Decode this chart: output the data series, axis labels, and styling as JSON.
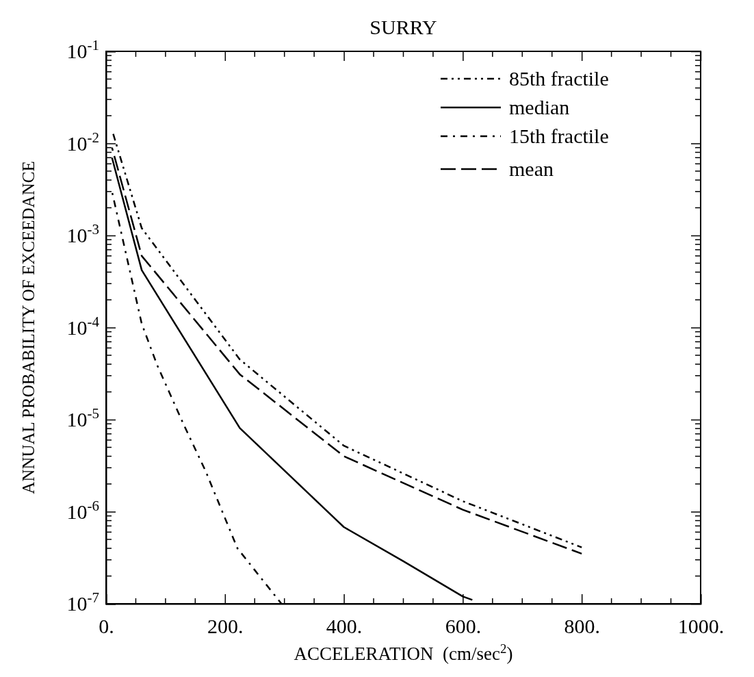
{
  "chart_data": {
    "type": "line",
    "title": "SURRY",
    "xlabel": "ACCELERATION  (cm/sec$^{2}$)",
    "ylabel": "ANNUAL PROBABILITY OF EXCEEDANCE",
    "log": "y",
    "legend": "top right",
    "grid": false,
    "xlim": [
      0,
      1000
    ],
    "xticks": [
      {
        "value": 0,
        "label": "0."
      },
      {
        "value": 200,
        "label": "200."
      },
      {
        "value": 400,
        "label": "400."
      },
      {
        "value": 600,
        "label": "600."
      },
      {
        "value": 800,
        "label": "800."
      },
      {
        "value": 1000,
        "label": "1000."
      }
    ],
    "ylim": [
      1e-07,
      0.1
    ],
    "yticks": [
      {
        "value": 1e-07,
        "label": "10$^{-7}$"
      },
      {
        "value": 1e-06,
        "label": "10$^{-6}$"
      },
      {
        "value": 1e-05,
        "label": "10$^{-5}$"
      },
      {
        "value": 0.0001,
        "label": "10$^{-4}$"
      },
      {
        "value": 0.001,
        "label": "10$^{-3}$"
      },
      {
        "value": 0.01,
        "label": "10$^{-2}$"
      },
      {
        "value": 0.1,
        "label": "10$^{-1}$"
      }
    ],
    "series": [
      {
        "name": "85th fractile",
        "color": "#000000",
        "line_style": "dashdotdot",
        "x": [
          10,
          60,
          225,
          400,
          600,
          800
        ],
        "values": [
          0.014,
          0.0012,
          4.5e-05,
          5.2e-06,
          1.3e-06,
          4.1e-07
        ]
      },
      {
        "name": "median",
        "color": "#000000",
        "line_style": "solid",
        "x": [
          10,
          60,
          225,
          400,
          500,
          600,
          616
        ],
        "values": [
          0.007,
          0.00042,
          8.1e-06,
          6.8e-07,
          2.9e-07,
          1.2e-07,
          1.1e-07
        ]
      },
      {
        "name": "15th fractile",
        "color": "#000000",
        "line_style": "dashdot",
        "x": [
          10,
          60,
          86,
          130,
          167,
          221,
          295
        ],
        "values": [
          0.003,
          0.00011,
          3.9e-05,
          9e-06,
          2.8e-06,
          4e-07,
          1e-07
        ]
      },
      {
        "name": "mean",
        "color": "#000000",
        "line_style": "dashed",
        "x": [
          10,
          60,
          225,
          400,
          600,
          800
        ],
        "values": [
          0.009,
          0.0006,
          3.1e-05,
          4e-06,
          1.05e-06,
          3.5e-07
        ]
      }
    ]
  }
}
